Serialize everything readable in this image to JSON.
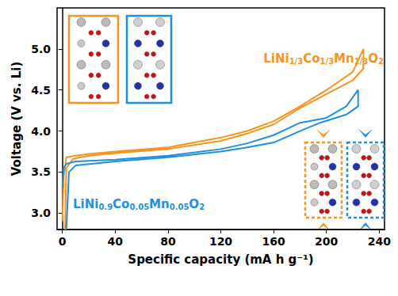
{
  "chart_data": {
    "type": "line",
    "x_label": "Specific capacity (mA h g⁻¹)",
    "y_label": "Voltage (V vs. Li)",
    "xlim": [
      -4,
      244
    ],
    "xticks": [
      0,
      40,
      80,
      120,
      160,
      200,
      240
    ],
    "ylim": [
      2.8,
      5.5
    ],
    "yticks": [
      {
        "value": 3,
        "label": "3.0"
      },
      {
        "value": 3.5,
        "label": "3.5"
      },
      {
        "value": 4,
        "label": "4.0"
      },
      {
        "value": 4.5,
        "label": "4.5"
      },
      {
        "value": 5,
        "label": "5.0"
      }
    ],
    "grid": false,
    "series": [
      {
        "name": "LiNi1/3Co1/3Mn1/3O2",
        "color": "#f7931e",
        "x": [
          0,
          1,
          3,
          10,
          20,
          40,
          80,
          120,
          140,
          160,
          180,
          200,
          220,
          228,
          228,
          220,
          200,
          180,
          160,
          140,
          120,
          80,
          40,
          20,
          8,
          3,
          2
        ],
        "values": [
          2.9,
          3.45,
          3.68,
          3.7,
          3.72,
          3.75,
          3.8,
          3.92,
          4.0,
          4.12,
          4.3,
          4.5,
          4.72,
          5.0,
          4.76,
          4.62,
          4.45,
          4.28,
          4.08,
          3.97,
          3.88,
          3.78,
          3.73,
          3.7,
          3.66,
          3.55,
          2.8
        ]
      },
      {
        "name": "LiNi0.9Co0.05Mn0.05O2",
        "color": "#1e8fe1",
        "x": [
          0,
          1,
          3,
          10,
          40,
          80,
          120,
          140,
          160,
          180,
          200,
          215,
          224,
          224,
          215,
          195,
          180,
          160,
          140,
          120,
          80,
          40,
          10,
          5,
          3
        ],
        "values": [
          3.3,
          3.55,
          3.6,
          3.63,
          3.65,
          3.7,
          3.78,
          3.85,
          3.95,
          4.1,
          4.16,
          4.3,
          4.5,
          4.3,
          4.2,
          4.1,
          4.0,
          3.86,
          3.8,
          3.75,
          3.68,
          3.63,
          3.58,
          3.5,
          2.8
        ]
      }
    ]
  }
}
